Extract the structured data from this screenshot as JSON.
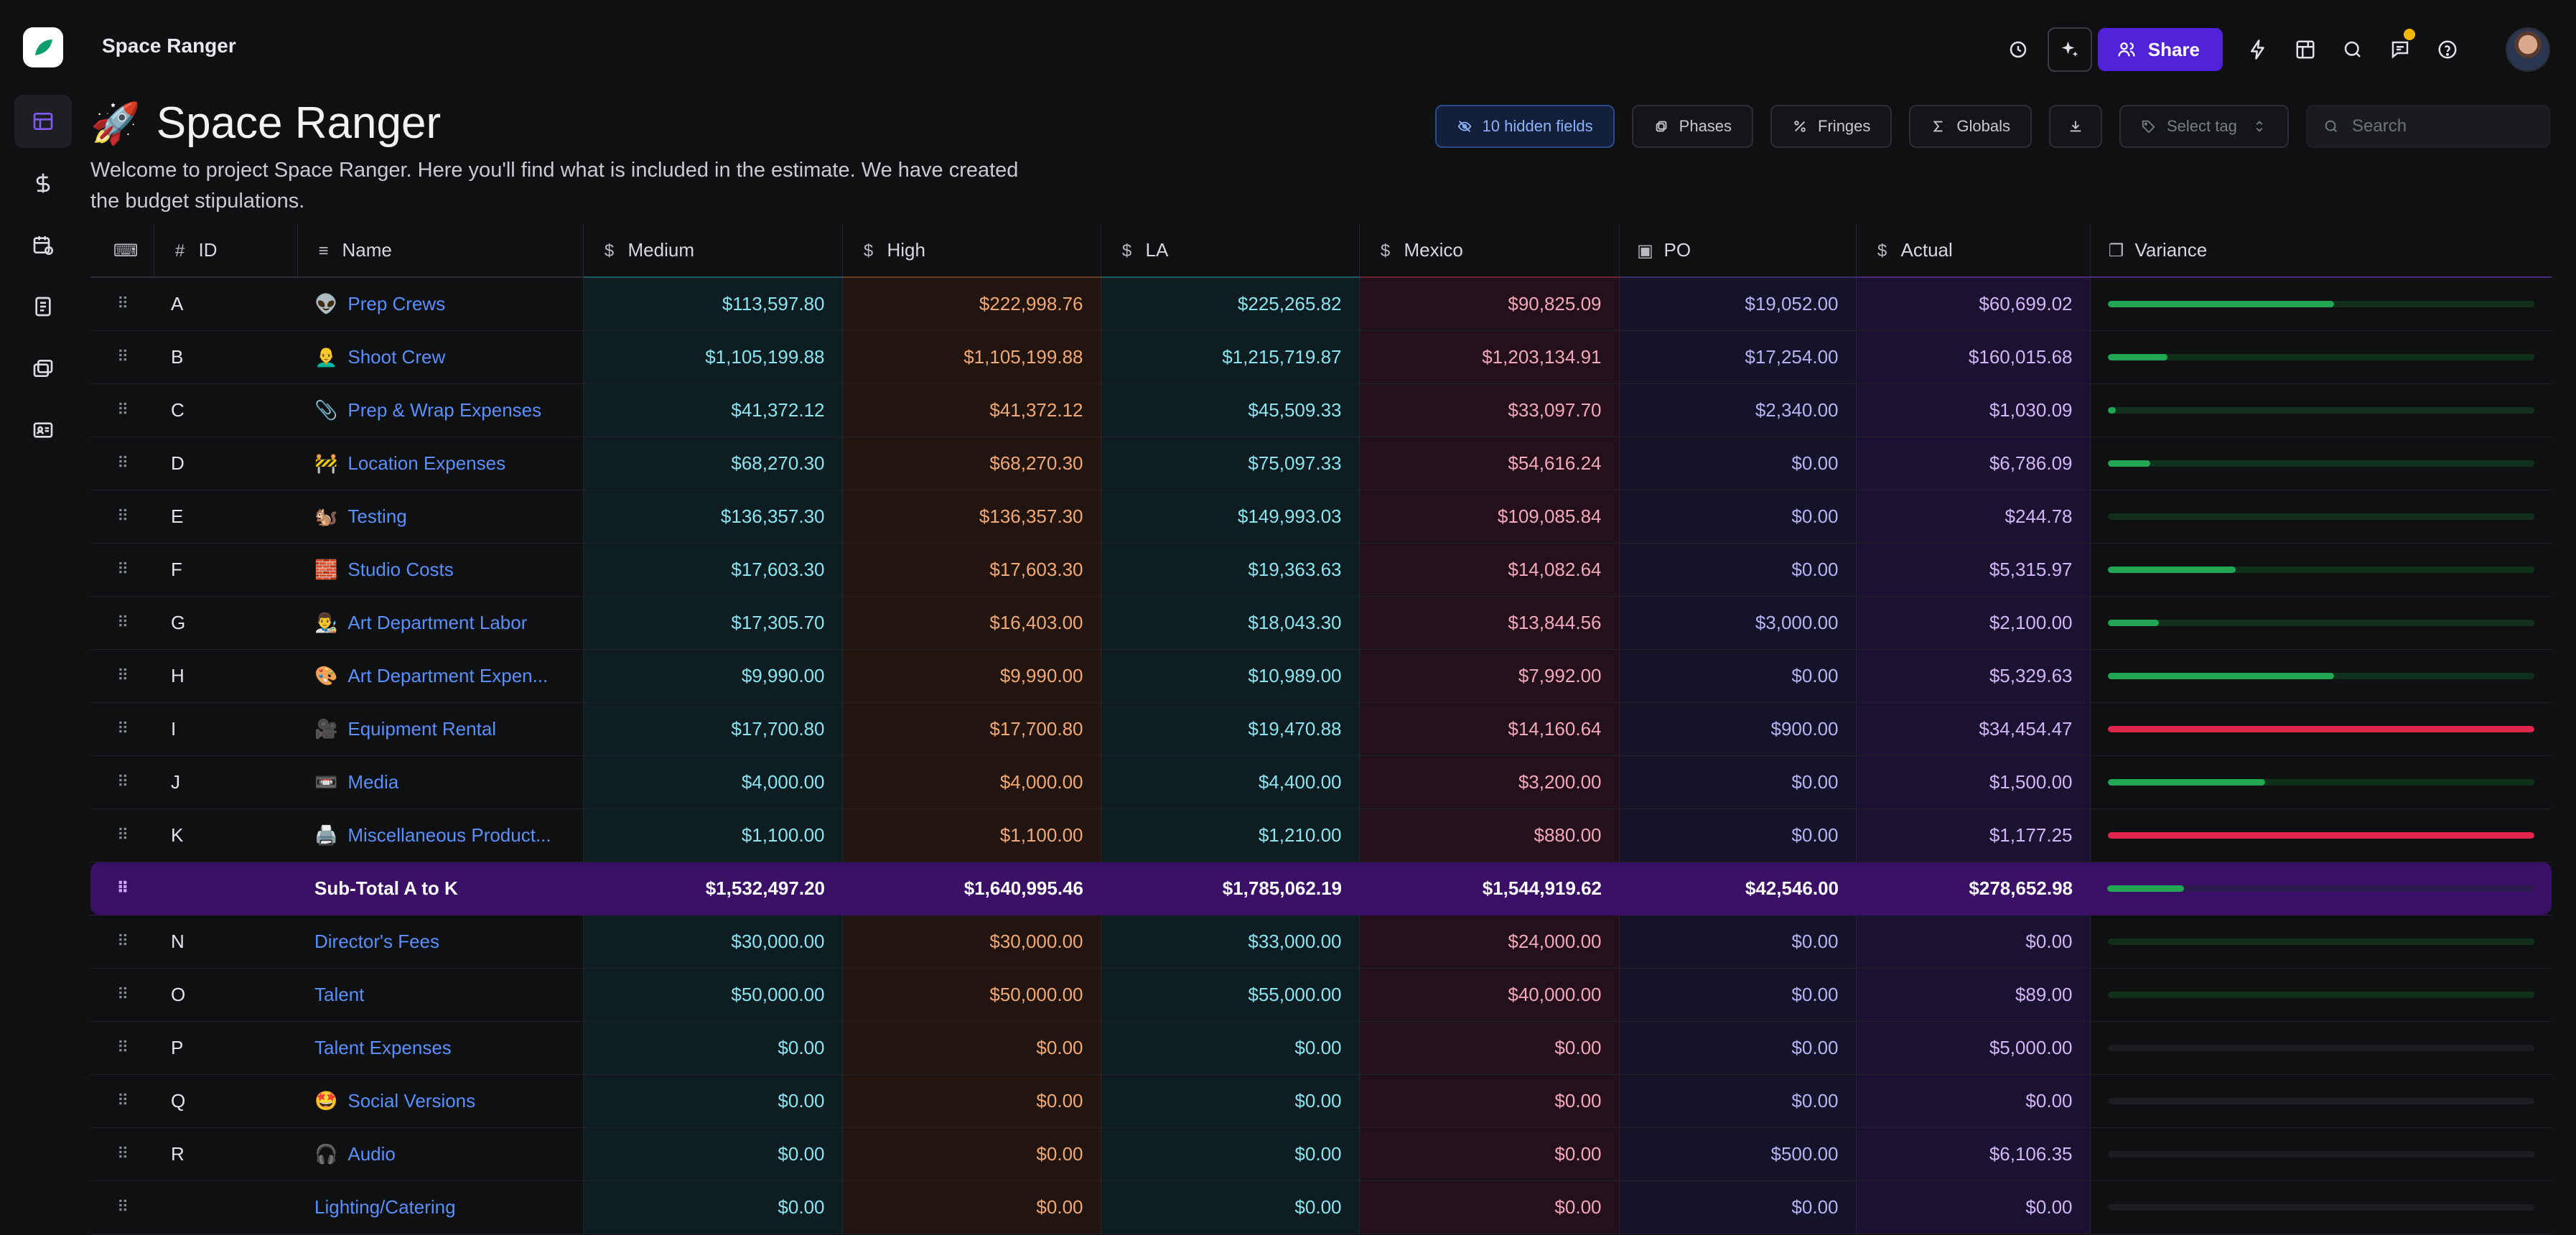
{
  "app": {
    "title": "Space Ranger"
  },
  "topbar": {
    "share_label": "Share"
  },
  "page": {
    "emoji": "🚀",
    "title": "Space Ranger",
    "description": "Welcome to project Space Ranger. Here you'll find what is included in the estimate. We have created the budget stipulations."
  },
  "toolbar": {
    "hidden_fields_label": "10 hidden fields",
    "phases_label": "Phases",
    "fringes_label": "Fringes",
    "globals_label": "Globals",
    "select_tag_label": "Select tag",
    "search_placeholder": "Search"
  },
  "columns": {
    "id": "ID",
    "name": "Name",
    "medium": "Medium",
    "high": "High",
    "la": "LA",
    "mexico": "Mexico",
    "po": "PO",
    "actual": "Actual",
    "variance": "Variance"
  },
  "rows": [
    {
      "id": "A",
      "emoji": "👽",
      "name": "Prep Crews",
      "medium": "$113,597.80",
      "high": "$222,998.76",
      "la": "$225,265.82",
      "mexico": "$90,825.09",
      "po": "$19,052.00",
      "actual": "$60,699.02",
      "variance": 0.53,
      "status": "ok"
    },
    {
      "id": "B",
      "emoji": "👨‍🦲",
      "name": "Shoot Crew",
      "medium": "$1,105,199.88",
      "high": "$1,105,199.88",
      "la": "$1,215,719.87",
      "mexico": "$1,203,134.91",
      "po": "$17,254.00",
      "actual": "$160,015.68",
      "variance": 0.14,
      "status": "ok"
    },
    {
      "id": "C",
      "emoji": "📎",
      "name": "Prep & Wrap Expenses",
      "medium": "$41,372.12",
      "high": "$41,372.12",
      "la": "$45,509.33",
      "mexico": "$33,097.70",
      "po": "$2,340.00",
      "actual": "$1,030.09",
      "variance": 0.02,
      "status": "ok"
    },
    {
      "id": "D",
      "emoji": "🚧",
      "name": "Location Expenses",
      "medium": "$68,270.30",
      "high": "$68,270.30",
      "la": "$75,097.33",
      "mexico": "$54,616.24",
      "po": "$0.00",
      "actual": "$6,786.09",
      "variance": 0.1,
      "status": "ok"
    },
    {
      "id": "E",
      "emoji": "🐿️",
      "name": "Testing",
      "medium": "$136,357.30",
      "high": "$136,357.30",
      "la": "$149,993.03",
      "mexico": "$109,085.84",
      "po": "$0.00",
      "actual": "$244.78",
      "variance": 0.0,
      "status": "ok"
    },
    {
      "id": "F",
      "emoji": "🧱",
      "name": "Studio Costs",
      "medium": "$17,603.30",
      "high": "$17,603.30",
      "la": "$19,363.63",
      "mexico": "$14,082.64",
      "po": "$0.00",
      "actual": "$5,315.97",
      "variance": 0.3,
      "status": "ok"
    },
    {
      "id": "G",
      "emoji": "👨‍🎨",
      "name": "Art Department Labor",
      "medium": "$17,305.70",
      "high": "$16,403.00",
      "la": "$18,043.30",
      "mexico": "$13,844.56",
      "po": "$3,000.00",
      "actual": "$2,100.00",
      "variance": 0.12,
      "status": "ok"
    },
    {
      "id": "H",
      "emoji": "🎨",
      "name": "Art Department Expen...",
      "medium": "$9,990.00",
      "high": "$9,990.00",
      "la": "$10,989.00",
      "mexico": "$7,992.00",
      "po": "$0.00",
      "actual": "$5,329.63",
      "variance": 0.53,
      "status": "ok"
    },
    {
      "id": "I",
      "emoji": "🎥",
      "name": "Equipment Rental",
      "medium": "$17,700.80",
      "high": "$17,700.80",
      "la": "$19,470.88",
      "mexico": "$14,160.64",
      "po": "$900.00",
      "actual": "$34,454.47",
      "variance": 1.0,
      "status": "over"
    },
    {
      "id": "J",
      "emoji": "📼",
      "name": "Media",
      "medium": "$4,000.00",
      "high": "$4,000.00",
      "la": "$4,400.00",
      "mexico": "$3,200.00",
      "po": "$0.00",
      "actual": "$1,500.00",
      "variance": 0.37,
      "status": "ok"
    },
    {
      "id": "K",
      "emoji": "🖨️",
      "name": "Miscellaneous Product...",
      "medium": "$1,100.00",
      "high": "$1,100.00",
      "la": "$1,210.00",
      "mexico": "$880.00",
      "po": "$0.00",
      "actual": "$1,177.25",
      "variance": 1.0,
      "status": "over"
    },
    {
      "subtotal": true,
      "id": "",
      "emoji": "",
      "name": "Sub-Total A to K",
      "medium": "$1,532,497.20",
      "high": "$1,640,995.46",
      "la": "$1,785,062.19",
      "mexico": "$1,544,919.62",
      "po": "$42,546.00",
      "actual": "$278,652.98",
      "variance": 0.18,
      "status": "ok"
    },
    {
      "id": "N",
      "emoji": "",
      "name": "Director's Fees",
      "medium": "$30,000.00",
      "high": "$30,000.00",
      "la": "$33,000.00",
      "mexico": "$24,000.00",
      "po": "$0.00",
      "actual": "$0.00",
      "variance": 0.0,
      "status": "ok"
    },
    {
      "id": "O",
      "emoji": "",
      "name": "Talent",
      "medium": "$50,000.00",
      "high": "$50,000.00",
      "la": "$55,000.00",
      "mexico": "$40,000.00",
      "po": "$0.00",
      "actual": "$89.00",
      "variance": 0.0,
      "status": "ok"
    },
    {
      "id": "P",
      "emoji": "",
      "name": "Talent Expenses",
      "medium": "$0.00",
      "high": "$0.00",
      "la": "$0.00",
      "mexico": "$0.00",
      "po": "$0.00",
      "actual": "$5,000.00",
      "variance": 0.0,
      "status": "empty"
    },
    {
      "id": "Q",
      "emoji": "🤩",
      "name": "Social Versions",
      "medium": "$0.00",
      "high": "$0.00",
      "la": "$0.00",
      "mexico": "$0.00",
      "po": "$0.00",
      "actual": "$0.00",
      "variance": 0.0,
      "status": "empty"
    },
    {
      "id": "R",
      "emoji": "🎧",
      "name": "Audio",
      "medium": "$0.00",
      "high": "$0.00",
      "la": "$0.00",
      "mexico": "$0.00",
      "po": "$500.00",
      "actual": "$6,106.35",
      "variance": 0.0,
      "status": "empty"
    },
    {
      "id": "",
      "emoji": "",
      "name": "Lighting/Catering",
      "medium": "$0.00",
      "high": "$0.00",
      "la": "$0.00",
      "mexico": "$0.00",
      "po": "$0.00",
      "actual": "$0.00",
      "variance": 0.0,
      "status": "empty"
    }
  ],
  "colors": {
    "accent": "#4f21d9",
    "link": "#5b8ff9",
    "subtotal_bg": "#3a0f66",
    "variance_ok": "#22a653",
    "variance_over": "#e0254a"
  },
  "icons": {
    "sidebar": [
      "grid-icon",
      "dollar-icon",
      "calendar-icon",
      "document-icon",
      "stack-icon",
      "id-card-icon"
    ],
    "topbar": [
      "clock-icon",
      "sparkle-icon",
      "users-icon",
      "bolt-icon",
      "table-icon",
      "search-icon",
      "chat-icon",
      "help-icon"
    ]
  }
}
